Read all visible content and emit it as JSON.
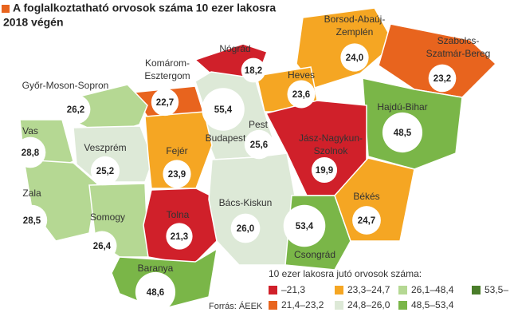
{
  "chart_data": {
    "type": "choropleth",
    "title": [
      "A foglalkoztatható orvosok száma 10 ezer lakosra",
      "2018 végén"
    ],
    "regions": [
      [
        "Nógrád"
      ],
      [
        "Borsod-Abaúj-",
        "Zemplén"
      ],
      [
        "Szabolcs-",
        "Szatmár-Bereg"
      ],
      [
        "Komárom-",
        "Esztergom"
      ],
      [
        "Heves"
      ],
      [
        "Győr-Moson-Sopron"
      ],
      [
        "Budapest"
      ],
      [
        "Pest"
      ],
      [
        "Hajdú-Bihar"
      ],
      [
        "Vas"
      ],
      [
        "Veszprém"
      ],
      [
        "Fejér"
      ],
      [
        "Jász-Nagykun-",
        "Szolnok"
      ],
      [
        "Zala"
      ],
      [
        "Somogy"
      ],
      [
        "Tolna"
      ],
      [
        "Bács-Kiskun"
      ],
      [
        "Csongrád"
      ],
      [
        "Békés"
      ],
      [
        "Baranya"
      ]
    ],
    "values": [
      18.2,
      24.0,
      23.2,
      22.7,
      23.6,
      26.2,
      55.4,
      25.6,
      48.5,
      28.8,
      25.2,
      23.9,
      19.9,
      28.5,
      26.4,
      21.3,
      26.0,
      53.4,
      24.7,
      48.6
    ],
    "value_labels": [
      "18,2",
      "24,0",
      "23,2",
      "22,7",
      "23,6",
      "26,2",
      "55,4",
      "25,6",
      "48,5",
      "28,8",
      "25,2",
      "23,9",
      "19,9",
      "28,5",
      "26,4",
      "21,3",
      "26,0",
      "53,4",
      "24,7",
      "48,6"
    ],
    "colors": [
      "#d0202a",
      "#f5a623",
      "#e8641e",
      "#e8641e",
      "#f5a623",
      "#b5d893",
      "#4a7d2a",
      "#dde9d7",
      "#7ab648",
      "#b5d893",
      "#dde9d7",
      "#f5a623",
      "#d0202a",
      "#b5d893",
      "#b5d893",
      "#d0202a",
      "#dde9d7",
      "#7ab648",
      "#f5a623",
      "#7ab648"
    ],
    "legend_title": "10 ezer lakosra jutó orvosok száma:",
    "legend": [
      {
        "label": "–21,3",
        "color": "#d0202a"
      },
      {
        "label": "21,4–23,2",
        "color": "#e8641e"
      },
      {
        "label": "23,3–24,7",
        "color": "#f5a623"
      },
      {
        "label": "24,8–26,0",
        "color": "#dde9d7"
      },
      {
        "label": "26,1–48,4",
        "color": "#b5d893"
      },
      {
        "label": "48,5–53,4",
        "color": "#7ab648"
      },
      {
        "label": "53,5–",
        "color": "#4a7d2a"
      }
    ],
    "source": "Forrás: ÁEEK"
  }
}
